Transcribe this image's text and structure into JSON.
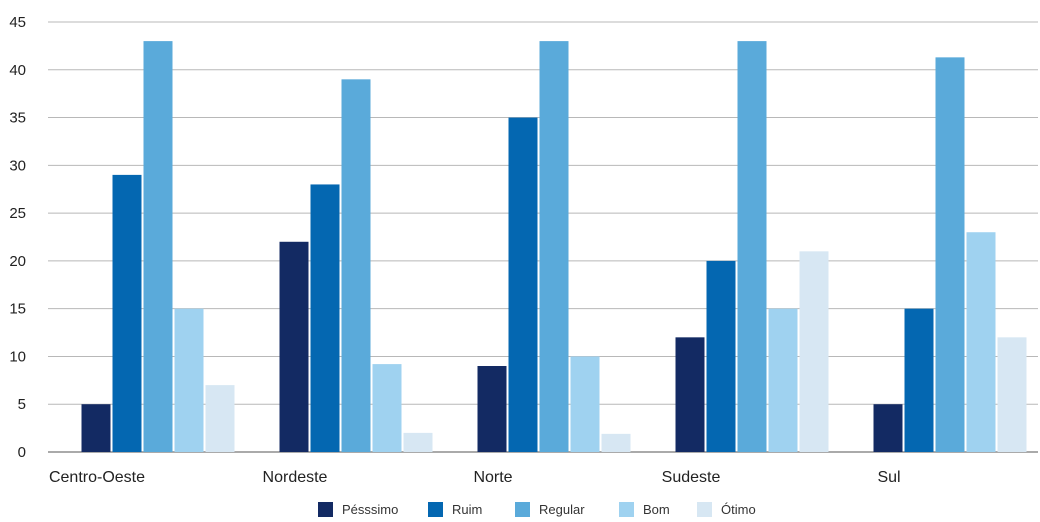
{
  "chart_data": {
    "type": "bar",
    "categories": [
      "Centro-Oeste",
      "Nordeste",
      "Norte",
      "Sudeste",
      "Sul"
    ],
    "series": [
      {
        "name": "Pésssimo",
        "color": "#132a63",
        "values": [
          5,
          22,
          9,
          12,
          5
        ]
      },
      {
        "name": "Ruim",
        "color": "#0467b1",
        "values": [
          29,
          28,
          35,
          20,
          15
        ]
      },
      {
        "name": "Regular",
        "color": "#5aaada",
        "values": [
          43,
          39,
          43,
          43,
          41.3
        ]
      },
      {
        "name": "Bom",
        "color": "#9fd2f0",
        "values": [
          15,
          9.2,
          10,
          15,
          23
        ]
      },
      {
        "name": "Ótimo",
        "color": "#d7e7f3",
        "values": [
          7,
          2,
          1.9,
          21,
          12
        ]
      }
    ],
    "ylim": [
      0,
      45
    ],
    "yticks": [
      0,
      5,
      10,
      15,
      20,
      25,
      30,
      35,
      40,
      45
    ],
    "grid": true,
    "legend": "bottom"
  }
}
